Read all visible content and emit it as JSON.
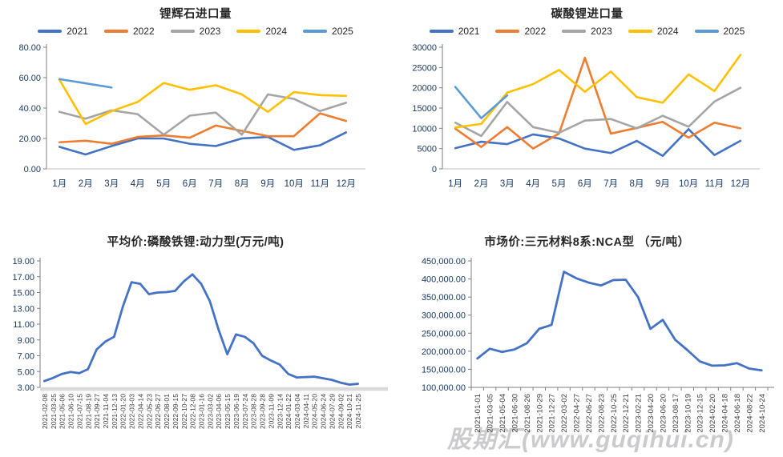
{
  "watermark": {
    "text": "股期汇(www.guqihui.cn)"
  },
  "colors": {
    "axis_text": "#17375E",
    "rotated_label_text": "#404040",
    "y_axis_line": "#7F7F7F",
    "series_2021": "#4472C4",
    "series_2022": "#ED7D31",
    "series_2023": "#A5A5A5",
    "series_2024": "#FFC000",
    "series_2025": "#5B9BD5"
  },
  "chart_data": [
    {
      "type": "line",
      "title": "锂辉石进口量",
      "legend": true,
      "legend_position": "top",
      "grid": false,
      "ylim": [
        0,
        80
      ],
      "yticks": [
        {
          "v": 0,
          "label": "0.00"
        },
        {
          "v": 20,
          "label": "20.00"
        },
        {
          "v": 40,
          "label": "40.00"
        },
        {
          "v": 60,
          "label": "60.00"
        },
        {
          "v": 80,
          "label": "80.00"
        }
      ],
      "categories": [
        "1月",
        "2月",
        "3月",
        "4月",
        "5月",
        "6月",
        "7月",
        "8月",
        "9月",
        "10月",
        "11月",
        "12月"
      ],
      "series": [
        {
          "name": "2021",
          "color": "#4472C4",
          "values": [
            14.5,
            9.5,
            15,
            20,
            20,
            16.5,
            15,
            20,
            21,
            12.5,
            15.5,
            24
          ]
        },
        {
          "name": "2022",
          "color": "#ED7D31",
          "values": [
            17.5,
            18.5,
            16.5,
            21,
            22,
            20.5,
            28.5,
            25,
            21.5,
            21.5,
            36.5,
            31.5
          ]
        },
        {
          "name": "2023",
          "color": "#A5A5A5",
          "values": [
            37.5,
            33,
            38.5,
            36,
            22.5,
            35,
            37,
            22.5,
            49,
            46,
            38,
            43.5
          ]
        },
        {
          "name": "2024",
          "color": "#FFC000",
          "values": [
            58.5,
            29.5,
            38,
            44,
            56.5,
            52,
            55,
            49,
            37.5,
            50.5,
            48.5,
            48
          ]
        },
        {
          "name": "2025",
          "color": "#5B9BD5",
          "values": [
            59,
            56.3,
            53.5
          ]
        }
      ]
    },
    {
      "type": "line",
      "title": "碳酸锂进口量",
      "legend": true,
      "legend_position": "top",
      "grid": false,
      "ylim": [
        0,
        30000
      ],
      "yticks": [
        {
          "v": 0,
          "label": "0"
        },
        {
          "v": 5000,
          "label": "5000"
        },
        {
          "v": 10000,
          "label": "10000"
        },
        {
          "v": 15000,
          "label": "15000"
        },
        {
          "v": 20000,
          "label": "20000"
        },
        {
          "v": 25000,
          "label": "25000"
        },
        {
          "v": 30000,
          "label": "30000"
        }
      ],
      "categories": [
        "1月",
        "2月",
        "3月",
        "4月",
        "5月",
        "6月",
        "7月",
        "8月",
        "9月",
        "10月",
        "11月",
        "12月"
      ],
      "series": [
        {
          "name": "2021",
          "color": "#4472C4",
          "values": [
            5100,
            6700,
            6100,
            8500,
            7500,
            5000,
            3900,
            6900,
            3200,
            9800,
            3400,
            6900
          ]
        },
        {
          "name": "2022",
          "color": "#ED7D31",
          "values": [
            9900,
            5400,
            10300,
            5000,
            8700,
            27400,
            8700,
            10100,
            11600,
            7700,
            11400,
            10000
          ]
        },
        {
          "name": "2023",
          "color": "#A5A5A5",
          "values": [
            11400,
            8100,
            16500,
            10300,
            8900,
            11900,
            12300,
            10000,
            13100,
            10400,
            16600,
            20000
          ]
        },
        {
          "name": "2024",
          "color": "#FFC000",
          "values": [
            10200,
            11100,
            18800,
            20900,
            24400,
            19000,
            24000,
            17700,
            16300,
            23300,
            19200,
            28100
          ]
        },
        {
          "name": "2025",
          "color": "#5B9BD5",
          "values": [
            20200,
            12500,
            18100
          ]
        }
      ]
    },
    {
      "type": "line",
      "title": "平均价:磷酸铁锂:动力型(万元/吨)",
      "legend": false,
      "grid": false,
      "rotated_labels": true,
      "ylim": [
        3,
        19
      ],
      "yticks": [
        {
          "v": 3,
          "label": "3.00"
        },
        {
          "v": 5,
          "label": "5.00"
        },
        {
          "v": 7,
          "label": "7.00"
        },
        {
          "v": 9,
          "label": "9.00"
        },
        {
          "v": 11,
          "label": "11.00"
        },
        {
          "v": 13,
          "label": "13.00"
        },
        {
          "v": 15,
          "label": "15.00"
        },
        {
          "v": 17,
          "label": "17.00"
        },
        {
          "v": 19,
          "label": "19.00"
        }
      ],
      "categories": [
        "2021-02-08",
        "2021-03-25",
        "2021-05-06",
        "2021-06-10",
        "2021-07-15",
        "2021-08-19",
        "2021-09-27",
        "2021-11-04",
        "2021-12-13",
        "2022-01-20",
        "2022-03-03",
        "2022-04-14",
        "2022-05-23",
        "2022-06-27",
        "2022-08-01",
        "2022-09-15",
        "2022-10-27",
        "2022-12-08",
        "2023-01-16",
        "2023-03-02",
        "2023-04-06",
        "2023-05-15",
        "2023-06-19",
        "2023-07-24",
        "2023-08-28",
        "2023-09-28",
        "2023-11-09",
        "2023-12-14",
        "2024-01-22",
        "2024-03-04",
        "2024-04-11",
        "2024-05-20",
        "2024-06-24",
        "2024-07-29",
        "2024-09-02",
        "2024-10-21",
        "2024-11-25"
      ],
      "series": [
        {
          "name": "平均价:磷酸铁锂:动力型",
          "color": "#4472C4",
          "values": [
            3.8,
            4.2,
            4.7,
            4.95,
            4.8,
            5.3,
            7.8,
            8.8,
            9.4,
            13.2,
            16.3,
            16.1,
            14.8,
            15.0,
            15.05,
            15.2,
            16.4,
            17.3,
            16.1,
            13.9,
            10.3,
            7.2,
            9.7,
            9.4,
            8.6,
            7.0,
            6.4,
            5.9,
            4.7,
            4.25,
            4.3,
            4.35,
            4.15,
            3.95,
            3.6,
            3.35,
            3.45
          ]
        }
      ]
    },
    {
      "type": "line",
      "title": "市场价:三元材料8系:NCA型 （元/吨）",
      "legend": false,
      "grid": false,
      "rotated_labels": true,
      "ylim": [
        100000,
        450000
      ],
      "yticks": [
        {
          "v": 100000,
          "label": "100,000.00"
        },
        {
          "v": 150000,
          "label": "150,000.00"
        },
        {
          "v": 200000,
          "label": "200,000.00"
        },
        {
          "v": 250000,
          "label": "250,000.00"
        },
        {
          "v": 300000,
          "label": "300,000.00"
        },
        {
          "v": 350000,
          "label": "350,000.00"
        },
        {
          "v": 400000,
          "label": "400,000.00"
        },
        {
          "v": 450000,
          "label": "450,000.00"
        }
      ],
      "categories": [
        "2021-01-01",
        "2021-03-05",
        "2021-05-04",
        "2021-06-30",
        "2021-08-26",
        "2021-10-29",
        "2021-12-27",
        "2022-03-02",
        "2022-04-27",
        "2022-06-27",
        "2022-08-23",
        "2022-10-25",
        "2022-12-21",
        "2023-02-21",
        "2023-04-20",
        "2023-06-20",
        "2023-08-17",
        "2023-10-19",
        "2023-12-15",
        "2024-02-20",
        "2024-04-18",
        "2024-06-18",
        "2024-08-22",
        "2024-10-24"
      ],
      "series": [
        {
          "name": "市场价:三元材料8系:NCA型",
          "color": "#4472C4",
          "values": [
            180000,
            207000,
            198000,
            205000,
            222000,
            262000,
            273000,
            420000,
            402000,
            390000,
            382000,
            397000,
            398000,
            350000,
            262000,
            287000,
            232000,
            203000,
            172000,
            160000,
            161000,
            167000,
            152000,
            147000
          ]
        }
      ]
    }
  ]
}
